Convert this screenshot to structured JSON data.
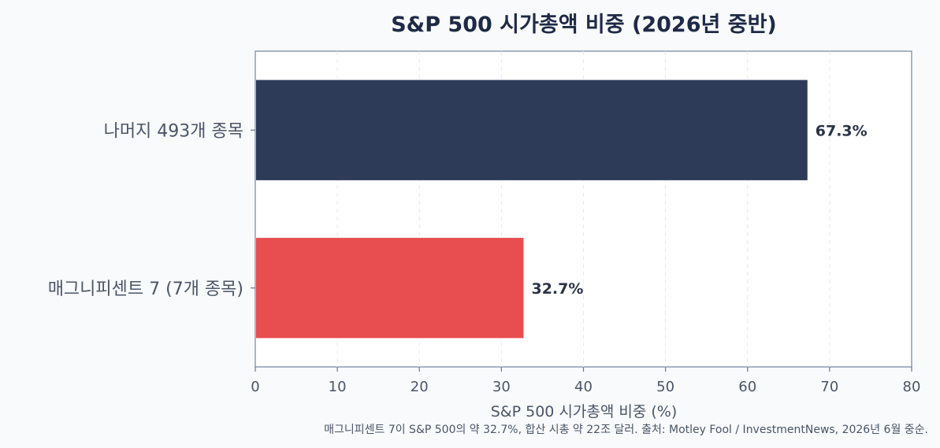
{
  "chart_data": {
    "type": "bar",
    "orientation": "horizontal",
    "title": "S&P 500 시가총액 비중 (2026년 중반)",
    "xlabel": "S&P 500 시가총액 비중 (%)",
    "ylabel": "",
    "categories": [
      "나머지 493개 종목",
      "매그니피센트 7 (7개 종목)"
    ],
    "values": [
      67.3,
      32.7
    ],
    "value_labels": [
      "67.3%",
      "32.7%"
    ],
    "bar_colors": [
      "#2d3b58",
      "#e84e4f"
    ],
    "xlim": [
      0,
      80
    ],
    "xticks": [
      0,
      10,
      20,
      30,
      40,
      50,
      60,
      70,
      80
    ],
    "grid": "vertical-dashed",
    "footnote": "매그니피센트 7이 S&P 500의 약 32.7%, 합산 시총 약 22조 달러. 출처: Motley Fool / InvestmentNews, 2026년 6월 중순."
  }
}
